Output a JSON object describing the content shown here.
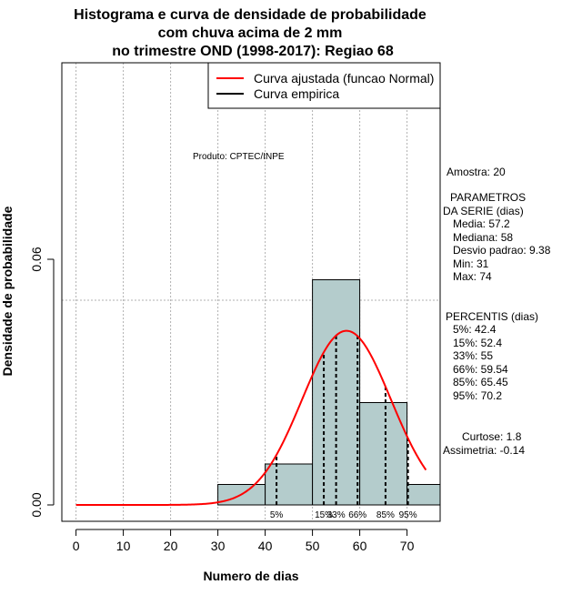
{
  "chart_data": {
    "type": "histogram",
    "title_lines": [
      "Histograma e curva de densidade de probabilidade",
      "com chuva acima de 2 mm",
      "no trimestre OND (1998-2017): Regiao 68"
    ],
    "xlabel": "Numero de dias",
    "ylabel": "Densidade de probabilidade",
    "xlim": [
      -3,
      77
    ],
    "ylim": [
      -0.004,
      0.108
    ],
    "x_ticks": [
      0,
      10,
      20,
      30,
      40,
      50,
      60,
      70
    ],
    "y_ticks": [
      0.0,
      0.06
    ],
    "y_tick_labels": [
      "0.00",
      "0.06"
    ],
    "grid_x": [
      0,
      10,
      20,
      30,
      40,
      50,
      60,
      70
    ],
    "ref_line_y": 0.05,
    "bins": [
      {
        "start": 30,
        "end": 40,
        "density": 0.005
      },
      {
        "start": 40,
        "end": 50,
        "density": 0.01
      },
      {
        "start": 50,
        "end": 60,
        "density": 0.055
      },
      {
        "start": 60,
        "end": 70,
        "density": 0.025
      },
      {
        "start": 70,
        "end": 80,
        "density": 0.005
      }
    ],
    "normal_curve": {
      "mean": 57.2,
      "sd": 9.38,
      "x_start": 0,
      "x_end": 74,
      "color": "#ff0000"
    },
    "percentile_lines": [
      {
        "x": 42.4,
        "label": "5%"
      },
      {
        "x": 52.4,
        "label": "15%"
      },
      {
        "x": 55,
        "label": "33%"
      },
      {
        "x": 59.54,
        "label": "66%"
      },
      {
        "x": 65.45,
        "label": "85%"
      },
      {
        "x": 70.2,
        "label": "95%"
      }
    ],
    "bar_color": "#b4cccc",
    "legend": {
      "position": "top-right",
      "entries": [
        {
          "label": "Curva ajustada (funcao Normal)",
          "color": "#ff0000"
        },
        {
          "label": "Curva empirica",
          "color": "#000000"
        }
      ]
    },
    "annotation": "Produto: CPTEC/INPE"
  },
  "side_panel": {
    "amostra": "Amostra: 20",
    "params_title_1": "PARAMETROS",
    "params_title_2": "DA SERIE (dias)",
    "media": "Media: 57.2",
    "mediana": "Mediana: 58",
    "desvio": "Desvio padrao: 9.38",
    "min": "Min: 31",
    "max": "Max: 74",
    "percentis_title": "PERCENTIS (dias)",
    "p5": "5%: 42.4",
    "p15": "15%: 52.4",
    "p33": "33%: 55",
    "p66": "66%: 59.54",
    "p85": "85%: 65.45",
    "p95": "95%: 70.2",
    "curtose": "Curtose: 1.8",
    "assimetria": "Assimetria: -0.14"
  }
}
